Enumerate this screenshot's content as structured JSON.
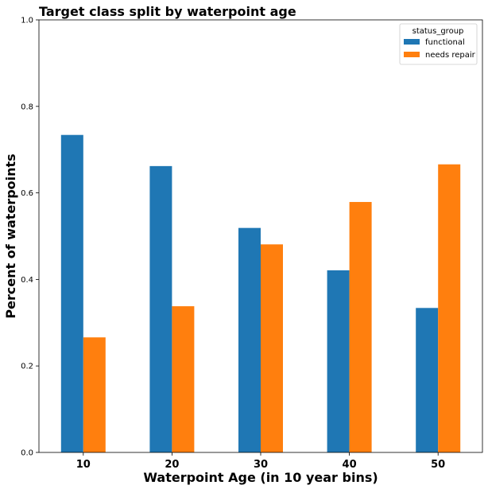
{
  "chart_data": {
    "type": "bar",
    "title": "Target class split by waterpoint age",
    "xlabel": "Waterpoint Age (in 10 year bins)",
    "ylabel": "Percent of waterpoints",
    "categories": [
      "10",
      "20",
      "30",
      "40",
      "50"
    ],
    "series": [
      {
        "name": "functional",
        "color": "#1f77b4",
        "values": [
          0.734,
          0.662,
          0.519,
          0.421,
          0.334
        ]
      },
      {
        "name": "needs repair",
        "color": "#ff7f0e",
        "values": [
          0.266,
          0.338,
          0.481,
          0.579,
          0.666
        ]
      }
    ],
    "ylim": [
      0,
      1.0
    ],
    "yticks": [
      "0.0",
      "0.2",
      "0.4",
      "0.6",
      "0.8",
      "1.0"
    ],
    "legend": {
      "title": "status_group",
      "placement": "top-right"
    },
    "grid": false
  }
}
